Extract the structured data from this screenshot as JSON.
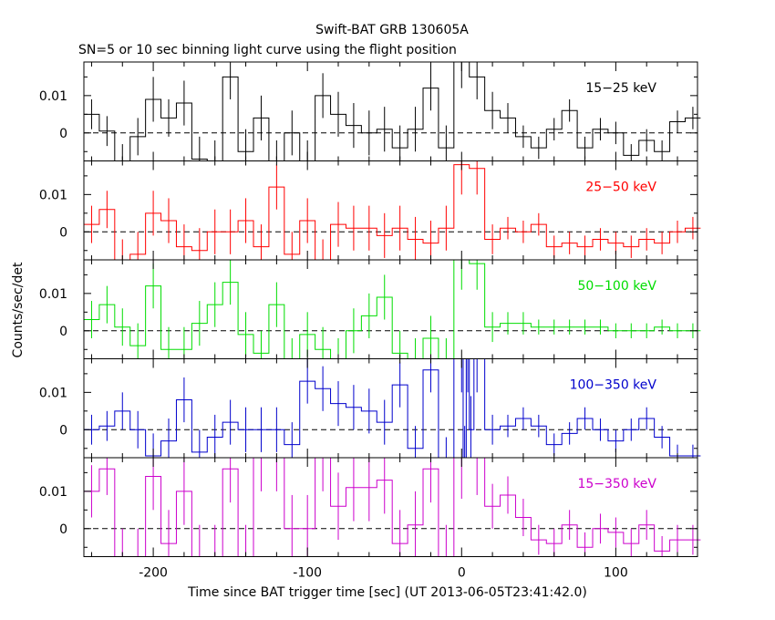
{
  "chart_data": {
    "type": "line",
    "title": "Swift-BAT GRB 130605A",
    "subtitle": "SN=5 or 10 sec binning light curve using the flight position",
    "xlabel": "Time since BAT trigger time [sec] (UT 2013-06-05T23:41:42.0)",
    "ylabel": "Counts/sec/det",
    "xlim": [
      -245,
      153
    ],
    "x_ticks": [
      "-200",
      "-100",
      "0",
      "100"
    ],
    "x_tick_values": [
      -200,
      -100,
      0,
      100
    ],
    "y_ticks": [
      "0",
      "0.01"
    ],
    "y_tick_values": [
      0,
      0.01
    ],
    "panels": [
      {
        "label": "15−25 keV",
        "color": "#000000",
        "ylim": [
          -0.0075,
          0.019
        ],
        "x": [
          -240,
          -230,
          -220,
          -210,
          -200,
          -190,
          -180,
          -170,
          -160,
          -150,
          -140,
          -130,
          -120,
          -110,
          -100,
          -90,
          -80,
          -70,
          -60,
          -50,
          -40,
          -30,
          -20,
          -10,
          0,
          10,
          20,
          30,
          40,
          50,
          60,
          70,
          80,
          90,
          100,
          110,
          120,
          130,
          140,
          150
        ],
        "y": [
          0.005,
          0.0005,
          -0.008,
          -0.001,
          0.009,
          0.004,
          0.008,
          -0.007,
          -0.008,
          0.015,
          -0.005,
          0.004,
          -0.008,
          0.0,
          -0.008,
          0.01,
          0.005,
          0.002,
          0.0,
          0.001,
          -0.004,
          0.001,
          0.012,
          -0.004,
          0.019,
          0.015,
          0.006,
          0.004,
          -0.001,
          -0.004,
          0.001,
          0.006,
          -0.004,
          0.001,
          0.0,
          -0.006,
          -0.002,
          -0.005,
          0.003,
          0.004
        ],
        "err": [
          0.004,
          0.004,
          0.005,
          0.005,
          0.006,
          0.005,
          0.006,
          0.006,
          0.006,
          0.006,
          0.006,
          0.006,
          0.006,
          0.006,
          0.006,
          0.006,
          0.006,
          0.006,
          0.006,
          0.006,
          0.006,
          0.006,
          0.006,
          0.006,
          0.007,
          0.006,
          0.005,
          0.004,
          0.003,
          0.003,
          0.003,
          0.003,
          0.003,
          0.003,
          0.003,
          0.003,
          0.003,
          0.003,
          0.003,
          0.003
        ]
      },
      {
        "label": "25−50 keV",
        "color": "#ff0000",
        "ylim": [
          -0.0075,
          0.019
        ],
        "x": [
          -240,
          -230,
          -220,
          -210,
          -200,
          -190,
          -180,
          -170,
          -160,
          -150,
          -140,
          -130,
          -120,
          -110,
          -100,
          -90,
          -80,
          -70,
          -60,
          -50,
          -40,
          -30,
          -20,
          -10,
          0,
          10,
          20,
          30,
          40,
          50,
          60,
          70,
          80,
          90,
          100,
          110,
          120,
          130,
          140,
          150
        ],
        "y": [
          0.002,
          0.006,
          -0.008,
          -0.006,
          0.005,
          0.003,
          -0.004,
          -0.005,
          0.0,
          0.0,
          0.003,
          -0.004,
          0.012,
          -0.006,
          0.003,
          -0.008,
          0.002,
          0.001,
          0.001,
          -0.001,
          0.001,
          -0.002,
          -0.003,
          0.001,
          0.018,
          0.017,
          -0.002,
          0.001,
          0.0,
          0.002,
          -0.004,
          -0.003,
          -0.004,
          -0.002,
          -0.003,
          -0.004,
          -0.002,
          -0.003,
          0.0,
          0.001
        ],
        "err": [
          0.005,
          0.005,
          0.006,
          0.006,
          0.006,
          0.006,
          0.006,
          0.006,
          0.006,
          0.006,
          0.006,
          0.006,
          0.006,
          0.006,
          0.006,
          0.006,
          0.006,
          0.006,
          0.006,
          0.006,
          0.006,
          0.006,
          0.006,
          0.006,
          0.008,
          0.007,
          0.004,
          0.003,
          0.003,
          0.003,
          0.003,
          0.003,
          0.003,
          0.003,
          0.003,
          0.003,
          0.003,
          0.003,
          0.003,
          0.003
        ]
      },
      {
        "label": "50−100 keV",
        "color": "#00dd00",
        "ylim": [
          -0.0075,
          0.019
        ],
        "x": [
          -240,
          -230,
          -220,
          -210,
          -200,
          -190,
          -180,
          -170,
          -160,
          -150,
          -140,
          -130,
          -120,
          -110,
          -100,
          -90,
          -80,
          -70,
          -60,
          -50,
          -40,
          -30,
          -20,
          -10,
          0,
          10,
          20,
          30,
          40,
          50,
          60,
          70,
          80,
          90,
          100,
          110,
          120,
          130,
          140,
          150
        ],
        "y": [
          0.003,
          0.007,
          0.001,
          -0.004,
          0.012,
          -0.005,
          -0.005,
          0.002,
          0.007,
          0.013,
          -0.001,
          -0.006,
          0.007,
          -0.008,
          -0.001,
          -0.005,
          -0.008,
          0.0,
          0.004,
          0.009,
          -0.006,
          -0.008,
          -0.002,
          -0.008,
          0.019,
          0.018,
          0.001,
          0.002,
          0.002,
          0.001,
          0.001,
          0.001,
          0.001,
          0.001,
          0.0,
          0.0,
          0.0,
          0.001,
          0.0,
          0.0
        ],
        "err": [
          0.005,
          0.005,
          0.005,
          0.006,
          0.006,
          0.006,
          0.006,
          0.006,
          0.006,
          0.006,
          0.006,
          0.006,
          0.006,
          0.006,
          0.006,
          0.006,
          0.006,
          0.006,
          0.006,
          0.006,
          0.006,
          0.006,
          0.006,
          0.006,
          0.008,
          0.007,
          0.004,
          0.003,
          0.003,
          0.002,
          0.002,
          0.002,
          0.002,
          0.002,
          0.002,
          0.002,
          0.002,
          0.002,
          0.002,
          0.002
        ]
      },
      {
        "label": "100−350 keV",
        "color": "#0000cc",
        "ylim": [
          -0.0075,
          0.019
        ],
        "x": [
          -240,
          -230,
          -220,
          -210,
          -200,
          -190,
          -180,
          -170,
          -160,
          -150,
          -140,
          -130,
          -120,
          -110,
          -100,
          -90,
          -80,
          -70,
          -60,
          -50,
          -40,
          -30,
          -20,
          -10,
          0,
          2,
          4,
          6,
          10,
          20,
          30,
          40,
          50,
          60,
          70,
          80,
          90,
          100,
          110,
          120,
          130,
          140,
          150
        ],
        "y": [
          0.0,
          0.001,
          0.005,
          0.0,
          -0.007,
          -0.003,
          0.008,
          -0.006,
          -0.002,
          0.002,
          0.0,
          0.0,
          0.0,
          -0.004,
          0.013,
          0.011,
          0.007,
          0.006,
          0.005,
          0.002,
          0.012,
          -0.005,
          0.016,
          -0.008,
          0.019,
          -0.008,
          0.019,
          0.0,
          0.019,
          0.0,
          0.001,
          0.003,
          0.001,
          -0.004,
          -0.001,
          0.003,
          0.0,
          -0.003,
          0.0,
          0.003,
          -0.002,
          -0.007,
          -0.007
        ],
        "err": [
          0.004,
          0.004,
          0.005,
          0.005,
          0.006,
          0.006,
          0.006,
          0.006,
          0.006,
          0.006,
          0.006,
          0.006,
          0.006,
          0.006,
          0.006,
          0.006,
          0.006,
          0.006,
          0.006,
          0.006,
          0.006,
          0.006,
          0.006,
          0.006,
          0.009,
          0.009,
          0.009,
          0.009,
          0.009,
          0.004,
          0.003,
          0.003,
          0.003,
          0.003,
          0.003,
          0.003,
          0.003,
          0.003,
          0.003,
          0.003,
          0.003,
          0.003,
          0.003
        ]
      },
      {
        "label": "15−350 keV",
        "color": "#cc00cc",
        "ylim": [
          -0.0075,
          0.019
        ],
        "x": [
          -240,
          -230,
          -220,
          -210,
          -200,
          -190,
          -180,
          -170,
          -160,
          -150,
          -140,
          -130,
          -120,
          -110,
          -100,
          -90,
          -80,
          -70,
          -60,
          -50,
          -40,
          -30,
          -20,
          -10,
          0,
          10,
          20,
          30,
          40,
          50,
          60,
          70,
          80,
          90,
          100,
          110,
          120,
          130,
          140,
          150
        ],
        "y": [
          0.01,
          0.016,
          -0.008,
          -0.008,
          0.014,
          -0.004,
          0.01,
          -0.008,
          -0.008,
          0.016,
          -0.008,
          0.019,
          0.019,
          0.0,
          0.0,
          0.019,
          0.006,
          0.011,
          0.011,
          0.013,
          -0.004,
          0.001,
          0.016,
          -0.008,
          0.019,
          0.019,
          0.006,
          0.009,
          0.003,
          -0.003,
          -0.004,
          0.001,
          -0.005,
          0.0,
          -0.001,
          -0.004,
          0.001,
          -0.006,
          -0.003,
          -0.003
        ],
        "err": [
          0.007,
          0.007,
          0.008,
          0.008,
          0.009,
          0.009,
          0.009,
          0.009,
          0.009,
          0.009,
          0.009,
          0.009,
          0.009,
          0.009,
          0.009,
          0.009,
          0.009,
          0.009,
          0.009,
          0.009,
          0.009,
          0.009,
          0.009,
          0.009,
          0.011,
          0.01,
          0.006,
          0.005,
          0.005,
          0.004,
          0.004,
          0.004,
          0.004,
          0.004,
          0.004,
          0.004,
          0.004,
          0.004,
          0.004,
          0.004
        ]
      }
    ],
    "grid": false,
    "legend": "none",
    "reference_line": {
      "y": 0,
      "style": "dashed"
    }
  }
}
